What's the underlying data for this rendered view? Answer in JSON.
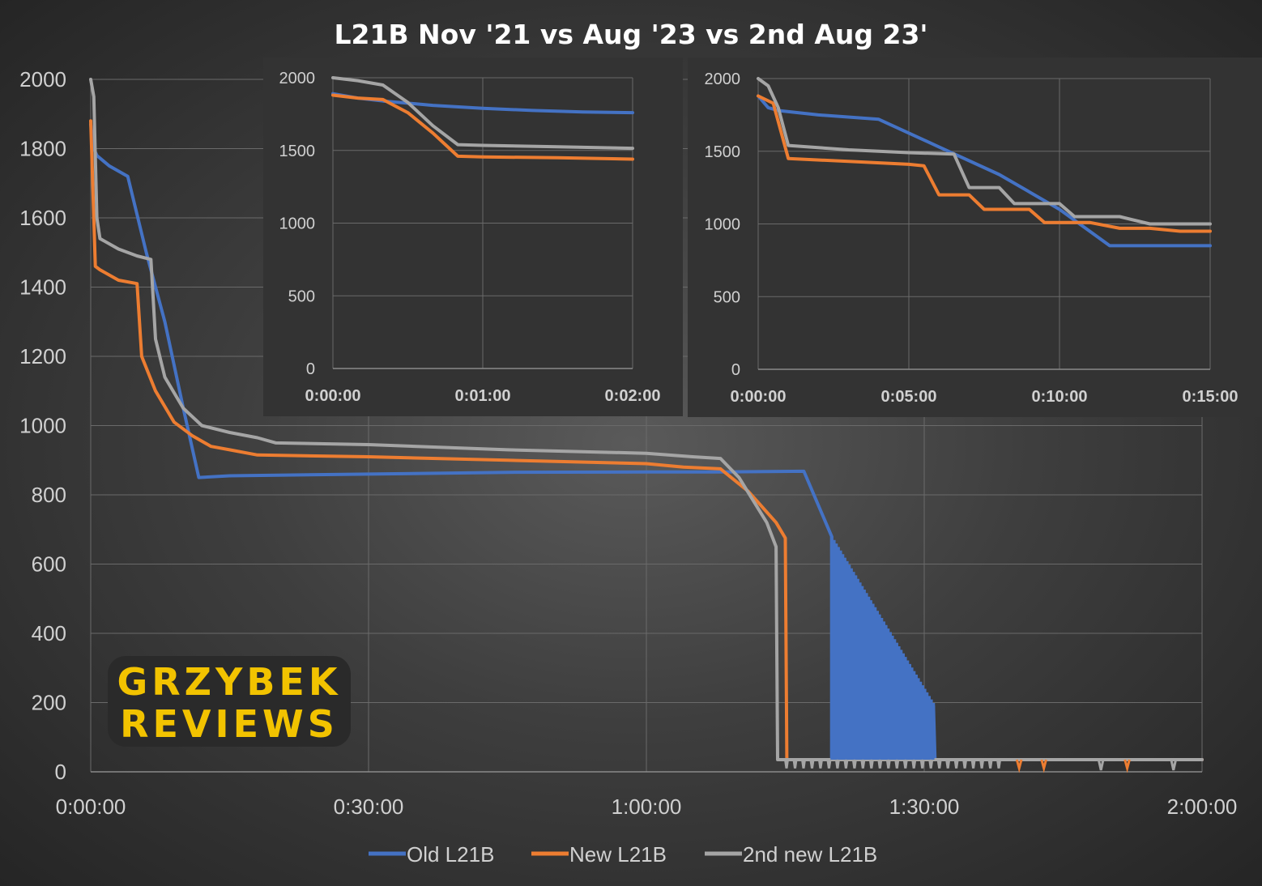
{
  "chart_data": [
    {
      "type": "line",
      "title": "L21B Nov '21 vs Aug '23 vs 2nd Aug 23'",
      "xlabel": "",
      "ylabel": "",
      "xlim": [
        0,
        7200
      ],
      "ylim": [
        0,
        2000
      ],
      "x_ticks": [
        "0:00:00",
        "0:30:00",
        "1:00:00",
        "1:30:00",
        "2:00:00"
      ],
      "y_ticks": [
        "0",
        "200",
        "400",
        "600",
        "800",
        "1000",
        "1200",
        "1400",
        "1600",
        "1800",
        "2000"
      ],
      "grid": true,
      "legend_position": "bottom",
      "series": [
        {
          "name": "Old L21B",
          "color": "#4472c4",
          "x": [
            "0:00:00",
            "0:00:20",
            "0:00:40",
            "0:02:00",
            "0:04:00",
            "0:06:00",
            "0:08:00",
            "0:10:00",
            "0:11:40",
            "0:15:00",
            "0:30:00",
            "0:45:00",
            "1:00:00",
            "1:08:00",
            "1:17:00",
            "1:20:00",
            "1:20:00",
            "1:23:00",
            "1:26:00",
            "1:28:00",
            "1:31:00",
            "1:31:10",
            "1:40:00",
            "1:50:00",
            "2:00:00"
          ],
          "y": [
            1870,
            1800,
            1780,
            1750,
            1720,
            1500,
            1300,
            1050,
            850,
            855,
            860,
            865,
            866,
            866,
            868,
            680,
            35,
            490,
            330,
            220,
            190,
            35,
            35,
            35,
            35
          ]
        },
        {
          "name": "New L21B",
          "color": "#ed7d31",
          "x": [
            "0:00:00",
            "0:00:30",
            "0:01:00",
            "0:03:00",
            "0:05:00",
            "0:05:30",
            "0:07:00",
            "0:09:00",
            "0:11:00",
            "0:13:00",
            "0:15:00",
            "0:18:00",
            "0:30:00",
            "0:45:00",
            "1:00:00",
            "1:04:00",
            "1:08:00",
            "1:11:00",
            "1:14:00",
            "1:15:00",
            "1:15:10",
            "1:30:00",
            "1:40:00",
            "1:45:00",
            "1:50:00",
            "2:00:00"
          ],
          "y": [
            1880,
            1460,
            1450,
            1420,
            1410,
            1200,
            1100,
            1010,
            970,
            940,
            930,
            915,
            910,
            900,
            890,
            880,
            875,
            810,
            720,
            675,
            35,
            35,
            35,
            35,
            35,
            35
          ]
        },
        {
          "name": "2nd new L21B",
          "color": "#a5a5a5",
          "x": [
            "0:00:00",
            "0:00:20",
            "0:00:40",
            "0:01:00",
            "0:03:00",
            "0:05:00",
            "0:06:30",
            "0:07:00",
            "0:08:00",
            "0:10:00",
            "0:12:00",
            "0:15:00",
            "0:18:00",
            "0:20:00",
            "0:30:00",
            "0:45:00",
            "1:00:00",
            "1:05:00",
            "1:08:00",
            "1:10:00",
            "1:13:00",
            "1:14:00",
            "1:14:10",
            "1:30:00",
            "1:45:00",
            "2:00:00"
          ],
          "y": [
            2000,
            1950,
            1600,
            1540,
            1510,
            1490,
            1480,
            1250,
            1140,
            1050,
            1000,
            980,
            965,
            950,
            945,
            930,
            920,
            910,
            905,
            850,
            720,
            650,
            35,
            35,
            35,
            35
          ]
        }
      ]
    },
    {
      "type": "line",
      "title": "",
      "xlim": [
        0,
        120
      ],
      "ylim": [
        0,
        2000
      ],
      "x_ticks": [
        "0:00:00",
        "0:01:00",
        "0:02:00"
      ],
      "y_ticks": [
        "0",
        "500",
        "1000",
        "1500",
        "2000"
      ],
      "grid": true,
      "series": [
        {
          "name": "Old L21B",
          "color": "#4472c4",
          "x": [
            "0:00:00",
            "0:00:10",
            "0:00:20",
            "0:00:30",
            "0:00:40",
            "0:01:00",
            "0:01:20",
            "0:01:40",
            "0:02:00"
          ],
          "y": [
            1890,
            1860,
            1840,
            1825,
            1810,
            1790,
            1775,
            1765,
            1760
          ]
        },
        {
          "name": "New L21B",
          "color": "#ed7d31",
          "x": [
            "0:00:00",
            "0:00:10",
            "0:00:20",
            "0:00:30",
            "0:00:40",
            "0:00:50",
            "0:01:00",
            "0:01:30",
            "0:02:00"
          ],
          "y": [
            1880,
            1860,
            1850,
            1760,
            1620,
            1460,
            1455,
            1450,
            1440
          ]
        },
        {
          "name": "2nd new L21B",
          "color": "#a5a5a5",
          "x": [
            "0:00:00",
            "0:00:10",
            "0:00:20",
            "0:00:30",
            "0:00:40",
            "0:00:50",
            "0:01:00",
            "0:01:30",
            "0:02:00"
          ],
          "y": [
            2000,
            1980,
            1950,
            1830,
            1670,
            1540,
            1535,
            1525,
            1515
          ]
        }
      ]
    },
    {
      "type": "line",
      "title": "",
      "xlim": [
        0,
        900
      ],
      "ylim": [
        0,
        2000
      ],
      "x_ticks": [
        "0:00:00",
        "0:05:00",
        "0:10:00",
        "0:15:00"
      ],
      "y_ticks": [
        "0",
        "500",
        "1000",
        "1500",
        "2000"
      ],
      "grid": true,
      "series": [
        {
          "name": "Old L21B",
          "color": "#4472c4",
          "x": [
            "0:00:00",
            "0:00:20",
            "0:00:40",
            "0:02:00",
            "0:04:00",
            "0:06:00",
            "0:08:00",
            "0:10:00",
            "0:11:40",
            "0:13:00",
            "0:15:00"
          ],
          "y": [
            1880,
            1800,
            1780,
            1750,
            1720,
            1530,
            1340,
            1100,
            850,
            850,
            850
          ]
        },
        {
          "name": "New L21B",
          "color": "#ed7d31",
          "x": [
            "0:00:00",
            "0:00:30",
            "0:01:00",
            "0:03:00",
            "0:05:00",
            "0:05:30",
            "0:06:00",
            "0:07:00",
            "0:07:30",
            "0:09:00",
            "0:09:30",
            "0:11:00",
            "0:12:00",
            "0:13:00",
            "0:14:00",
            "0:15:00"
          ],
          "y": [
            1880,
            1830,
            1450,
            1430,
            1410,
            1400,
            1200,
            1200,
            1100,
            1100,
            1010,
            1010,
            970,
            970,
            950,
            950
          ]
        },
        {
          "name": "2nd new L21B",
          "color": "#a5a5a5",
          "x": [
            "0:00:00",
            "0:00:20",
            "0:00:40",
            "0:01:00",
            "0:03:00",
            "0:05:00",
            "0:06:30",
            "0:07:00",
            "0:08:00",
            "0:08:30",
            "0:10:00",
            "0:10:30",
            "0:12:00",
            "0:13:00",
            "0:15:00"
          ],
          "y": [
            2000,
            1950,
            1800,
            1540,
            1510,
            1490,
            1480,
            1250,
            1250,
            1140,
            1140,
            1050,
            1050,
            1000,
            1000
          ]
        }
      ]
    }
  ],
  "logo": {
    "line1": "GRZYBEK",
    "line2": "REVIEWS"
  }
}
